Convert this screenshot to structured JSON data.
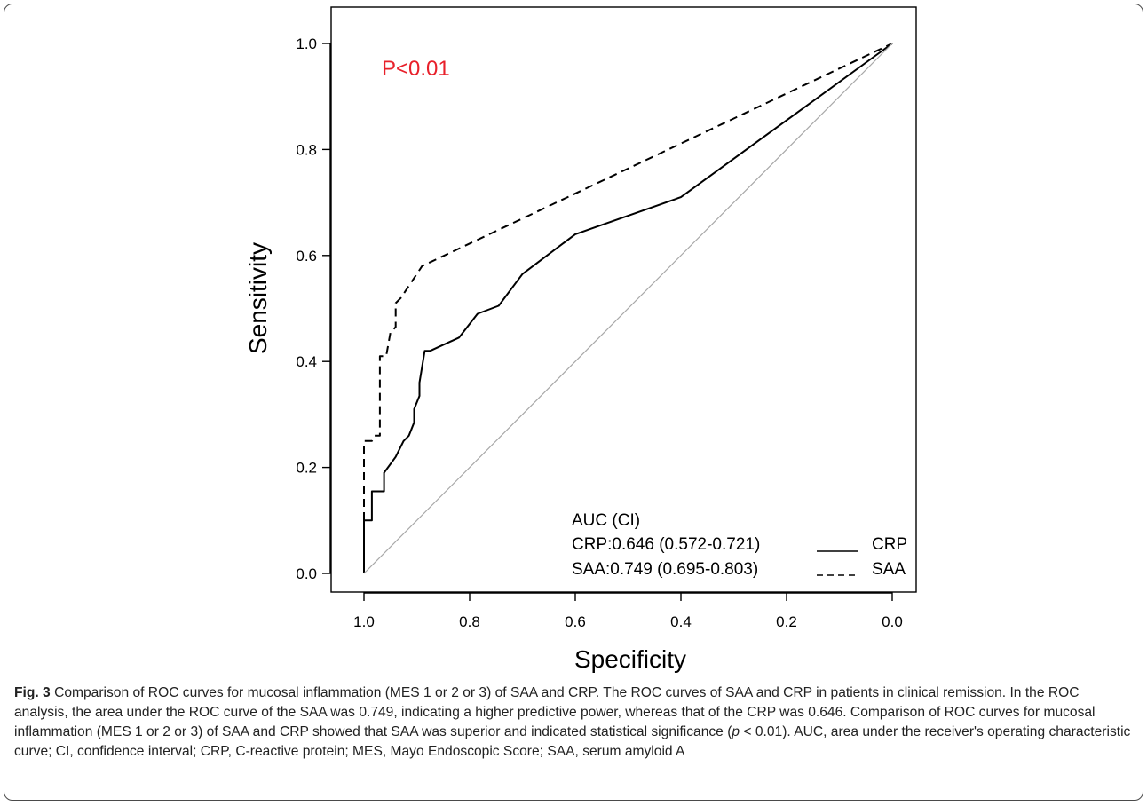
{
  "figure": {
    "fig_label": "Fig. 3",
    "caption_part1": " Comparison of ROC curves for mucosal inflammation (MES 1 or 2 or 3) of SAA and CRP. The ROC curves of SAA and CRP in patients in clinical remission. In the ROC analysis, the area under the ROC curve of the SAA was 0.749, indicating a higher predictive power, whereas that of the CRP was 0.646. Comparison of ROC curves for mucosal inflammation (MES 1 or 2 or 3) of SAA and CRP showed that SAA was superior and indicated statistical significance (",
    "caption_italic": "p",
    "caption_part2": " < 0.01). AUC, area under the receiver's operating characteristic curve; CI, confidence interval; CRP, C-reactive protein; MES, Mayo Endoscopic Score; SAA, serum amyloid A"
  },
  "chart_data": {
    "type": "line",
    "xlabel": "Specificity",
    "ylabel": "Sensitivity",
    "xlim": [
      1.0,
      0.0
    ],
    "ylim": [
      0.0,
      1.0
    ],
    "x_reversed": true,
    "x_ticks": [
      "1.0",
      "0.8",
      "0.6",
      "0.4",
      "0.2",
      "0.0"
    ],
    "y_ticks": [
      "0.0",
      "0.2",
      "0.4",
      "0.6",
      "0.8",
      "1.0"
    ],
    "annotation": "P<0.01",
    "annotation_color": "#e8202a",
    "legend_title": "AUC (CI)",
    "legend_position": "bottom-right",
    "series": [
      {
        "name": "CRP",
        "legend_text": "CRP:0.646 (0.572-0.721)",
        "line_style": "solid",
        "points": [
          [
            1.0,
            0.0
          ],
          [
            1.0,
            0.1
          ],
          [
            0.985,
            0.1
          ],
          [
            0.985,
            0.155
          ],
          [
            0.962,
            0.155
          ],
          [
            0.962,
            0.19
          ],
          [
            0.94,
            0.22
          ],
          [
            0.925,
            0.25
          ],
          [
            0.915,
            0.26
          ],
          [
            0.905,
            0.285
          ],
          [
            0.905,
            0.31
          ],
          [
            0.895,
            0.335
          ],
          [
            0.895,
            0.36
          ],
          [
            0.885,
            0.42
          ],
          [
            0.875,
            0.42
          ],
          [
            0.82,
            0.445
          ],
          [
            0.785,
            0.49
          ],
          [
            0.745,
            0.505
          ],
          [
            0.7,
            0.565
          ],
          [
            0.6,
            0.64
          ],
          [
            0.4,
            0.71
          ],
          [
            0.0,
            1.0
          ]
        ]
      },
      {
        "name": "SAA",
        "legend_text": "SAA:0.749 (0.695-0.803)",
        "line_style": "dashed",
        "points": [
          [
            1.0,
            0.0
          ],
          [
            1.0,
            0.25
          ],
          [
            0.985,
            0.25
          ],
          [
            0.98,
            0.26
          ],
          [
            0.97,
            0.26
          ],
          [
            0.97,
            0.41
          ],
          [
            0.958,
            0.41
          ],
          [
            0.95,
            0.455
          ],
          [
            0.94,
            0.465
          ],
          [
            0.94,
            0.51
          ],
          [
            0.93,
            0.52
          ],
          [
            0.89,
            0.58
          ],
          [
            0.0,
            1.0
          ]
        ]
      },
      {
        "name": "",
        "line_style": "solid",
        "color": "#a8a8a8",
        "points": [
          [
            1.0,
            0.0
          ],
          [
            0.0,
            1.0
          ]
        ]
      }
    ]
  }
}
